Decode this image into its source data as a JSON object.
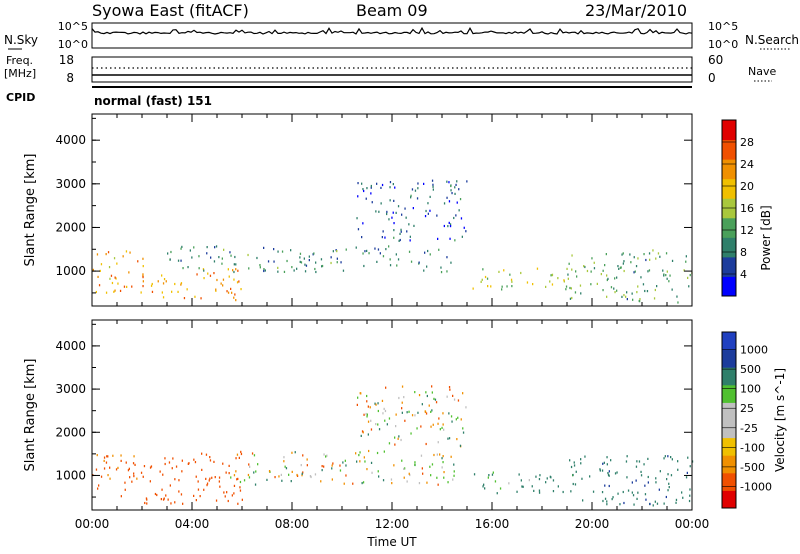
{
  "header": {
    "station": "Syowa East (fitACF)",
    "beam": "Beam 09",
    "date": "23/Mar/2010"
  },
  "noise_panel": {
    "left_label": "N.Sky",
    "right_label": "N.Search",
    "ticks_left": [
      "10^5",
      "10^0"
    ],
    "ticks_right": [
      "10^5",
      "10^0"
    ]
  },
  "freq_panel": {
    "left_label_1": "Freq.",
    "left_label_2": "[MHz]",
    "right_label": "Nave",
    "ticks_left": [
      "18",
      "8"
    ],
    "ticks_right": [
      "60",
      "0"
    ]
  },
  "cpid": {
    "label": "CPID",
    "value": "normal (fast) 151"
  },
  "colors": {
    "power_scale": [
      "#0000ff",
      "#1c3c9c",
      "#2f7f6a",
      "#4aa05a",
      "#a9c83c",
      "#f0c000",
      "#f09000",
      "#f05000",
      "#e00000"
    ],
    "velocity_scale": [
      "#e00000",
      "#f05000",
      "#f09000",
      "#f0c000",
      "#c0c0c0",
      "#c0c0c0",
      "#50c030",
      "#2f7f6a",
      "#1c3c9c",
      "#2040c0"
    ]
  },
  "chart_data": [
    {
      "type": "heatmap",
      "name": "power",
      "ylabel": "Slant Range [km]",
      "yticks": [
        "1000",
        "2000",
        "3000",
        "4000"
      ],
      "ylim": [
        200,
        4600
      ],
      "xlim_hours": [
        0,
        24
      ],
      "colorbar_label": "Power [dB]",
      "colorbar_ticks": [
        "4",
        "8",
        "12",
        "16",
        "20",
        "24",
        "28"
      ],
      "colorbar_range": [
        0,
        32
      ],
      "regions": [
        {
          "t0": 0.0,
          "t1": 2.1,
          "r0": 500,
          "r1": 1500,
          "level": 22
        },
        {
          "t0": 2.0,
          "t1": 6.0,
          "r0": 350,
          "r1": 1100,
          "level": 22
        },
        {
          "t0": 3.0,
          "t1": 14.5,
          "r0": 1000,
          "r1": 1600,
          "level": 10
        },
        {
          "t0": 10.5,
          "t1": 15.0,
          "r0": 1700,
          "r1": 3100,
          "level": 6
        },
        {
          "t0": 15.2,
          "t1": 19.5,
          "r0": 600,
          "r1": 1100,
          "level": 16
        },
        {
          "t0": 19.0,
          "t1": 24.0,
          "r0": 300,
          "r1": 1500,
          "level": 12
        }
      ]
    },
    {
      "type": "heatmap",
      "name": "velocity",
      "ylabel": "Slant Range [km]",
      "yticks": [
        "1000",
        "2000",
        "3000",
        "4000"
      ],
      "ylim": [
        200,
        4600
      ],
      "xlim_hours": [
        0,
        24
      ],
      "colorbar_label": "Velocity [m s^-1]",
      "colorbar_ticks": [
        "1000",
        "500",
        "100",
        "25",
        "-25",
        "-100",
        "-500",
        "-1000"
      ],
      "regions": [
        {
          "t0": 0.0,
          "t1": 2.1,
          "r0": 500,
          "r1": 1500,
          "vel": -200
        },
        {
          "t0": 2.0,
          "t1": 6.0,
          "r0": 350,
          "r1": 1600,
          "vel": -300
        },
        {
          "t0": 5.5,
          "t1": 14.5,
          "r0": 800,
          "r1": 1600,
          "vel": 0
        },
        {
          "t0": 10.5,
          "t1": 15.0,
          "r0": 1700,
          "r1": 3100,
          "vel": 0
        },
        {
          "t0": 15.2,
          "t1": 19.5,
          "r0": 600,
          "r1": 1100,
          "vel": 150
        },
        {
          "t0": 19.0,
          "t1": 24.0,
          "r0": 300,
          "r1": 1500,
          "vel": 400
        }
      ],
      "xticks": [
        "00:00",
        "04:00",
        "08:00",
        "12:00",
        "16:00",
        "20:00",
        "00:00"
      ],
      "xlabel": "Time UT"
    }
  ]
}
